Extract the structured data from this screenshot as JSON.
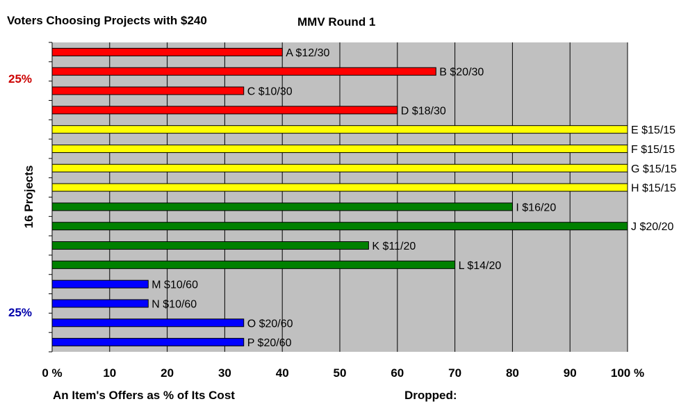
{
  "header": {
    "title": "Voters Choosing Projects with $240",
    "round": "MMV Round 1"
  },
  "annotations": {
    "top_group_share": "25%",
    "bottom_group_share": "25%",
    "dropped_label": "Dropped:"
  },
  "colors": {
    "plot_bg": "#c0c0c0",
    "red": "#ff0000",
    "yellow": "#ffff00",
    "green": "#008000",
    "blue": "#0000ff",
    "pct_top": "#cc0000",
    "pct_bottom": "#0000aa"
  },
  "chart_data": {
    "type": "bar",
    "orientation": "horizontal",
    "ylabel": "16 Projects",
    "xlabel": "An Item's Offers as % of Its Cost",
    "xlim": [
      0,
      100
    ],
    "x_ticks": [
      "0 %",
      "10",
      "20",
      "30",
      "40",
      "50",
      "60",
      "70",
      "80",
      "90",
      "100 %"
    ],
    "grid": true,
    "bars": [
      {
        "label": "A $12/30",
        "value": 40,
        "color": "#ff0000"
      },
      {
        "label": "B $20/30",
        "value": 66.7,
        "color": "#ff0000"
      },
      {
        "label": "C $10/30",
        "value": 33.3,
        "color": "#ff0000"
      },
      {
        "label": "D $18/30",
        "value": 60,
        "color": "#ff0000"
      },
      {
        "label": "E $15/15",
        "value": 100,
        "color": "#ffff00"
      },
      {
        "label": "F $15/15",
        "value": 100,
        "color": "#ffff00"
      },
      {
        "label": "G $15/15",
        "value": 100,
        "color": "#ffff00"
      },
      {
        "label": "H $15/15",
        "value": 100,
        "color": "#ffff00"
      },
      {
        "label": "I $16/20",
        "value": 80,
        "color": "#008000"
      },
      {
        "label": "J $20/20",
        "value": 100,
        "color": "#008000"
      },
      {
        "label": "K $11/20",
        "value": 55,
        "color": "#008000"
      },
      {
        "label": "L $14/20",
        "value": 70,
        "color": "#008000"
      },
      {
        "label": "M $10/60",
        "value": 16.7,
        "color": "#0000ff"
      },
      {
        "label": "N $10/60",
        "value": 16.7,
        "color": "#0000ff"
      },
      {
        "label": "O $20/60",
        "value": 33.3,
        "color": "#0000ff"
      },
      {
        "label": "P $20/60",
        "value": 33.3,
        "color": "#0000ff"
      }
    ]
  }
}
